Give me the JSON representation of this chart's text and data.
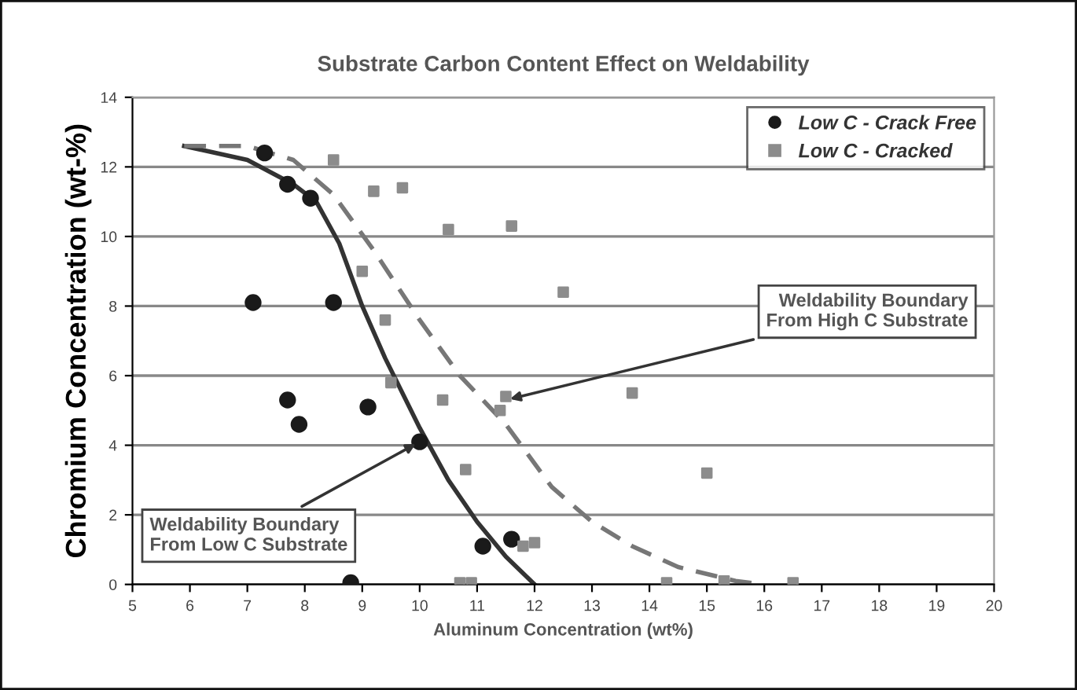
{
  "chart_data": {
    "type": "scatter",
    "title": "Substrate Carbon Content Effect on Weldability",
    "xlabel": "Aluminum Concentration (wt%)",
    "ylabel": "Chromium Concentration (wt-%)",
    "xlim": [
      5,
      20
    ],
    "xticks": [
      5,
      6,
      7,
      8,
      9,
      10,
      11,
      12,
      13,
      14,
      15,
      16,
      17,
      18,
      19,
      20
    ],
    "ylim": [
      0,
      14
    ],
    "yticks": [
      0,
      2,
      4,
      6,
      8,
      10,
      12,
      14
    ],
    "grid": "y",
    "legend": "top right",
    "series": [
      {
        "name": "Low C - Crack Free",
        "marker": "circle",
        "color": "#1a1a1a",
        "x": [
          7.3,
          7.7,
          8.1,
          7.1,
          8.5,
          7.7,
          7.9,
          9.1,
          10.0,
          8.8,
          11.1,
          11.6
        ],
        "values": [
          12.4,
          11.5,
          11.1,
          8.1,
          8.1,
          5.3,
          4.6,
          5.1,
          4.1,
          0.05,
          1.1,
          1.3
        ]
      },
      {
        "name": "Low C - Cracked",
        "marker": "square",
        "color": "#8c8c8c",
        "x": [
          8.5,
          9.2,
          9.7,
          10.5,
          11.6,
          12.5,
          9.0,
          9.4,
          9.5,
          10.4,
          11.4,
          11.5,
          10.8,
          11.8,
          12.0,
          10.7,
          10.9,
          13.7,
          15.0,
          14.3,
          15.3,
          16.5
        ],
        "values": [
          12.2,
          11.3,
          11.4,
          10.2,
          10.3,
          8.4,
          9.0,
          7.6,
          5.8,
          5.3,
          5.0,
          5.4,
          3.3,
          1.1,
          1.2,
          0.05,
          0.05,
          5.5,
          3.2,
          0.05,
          0.1,
          0.05
        ]
      },
      {
        "type": "line",
        "marker": "none",
        "line_style": "solid",
        "color": "#333333",
        "x": [
          5.9,
          7.0,
          7.8,
          8.2,
          8.6,
          9.0,
          9.4,
          10.0,
          10.5,
          11.0,
          11.5,
          12.0
        ],
        "values": [
          12.6,
          12.2,
          11.5,
          11.0,
          9.8,
          8.0,
          6.5,
          4.5,
          3.0,
          1.8,
          0.8,
          0
        ]
      },
      {
        "type": "line",
        "marker": "none",
        "line_style": "dashed",
        "color": "#777777",
        "x": [
          5.9,
          7.0,
          7.8,
          8.5,
          9.2,
          10.0,
          10.7,
          11.5,
          12.3,
          13.0,
          13.7,
          14.5,
          15.5,
          16.0
        ],
        "values": [
          12.6,
          12.6,
          12.2,
          11.2,
          9.6,
          7.6,
          6.0,
          4.6,
          2.8,
          1.8,
          1.1,
          0.5,
          0.1,
          0
        ]
      }
    ],
    "annotations": [
      {
        "text": "Weldability Boundary\nFrom Low C Substrate",
        "x": 10.0,
        "y": 4.1
      },
      {
        "text": "Weldability Boundary\nFrom High C Substrate",
        "x": 11.5,
        "y": 5.3
      }
    ]
  }
}
